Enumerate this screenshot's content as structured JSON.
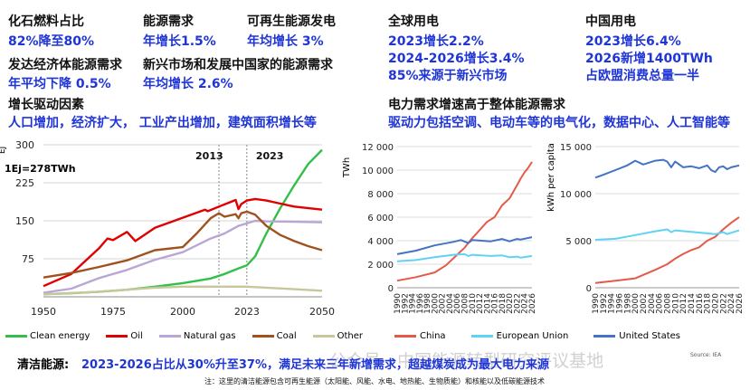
{
  "top": {
    "s1": {
      "label": "化石燃料占比",
      "value": "82%降至80%"
    },
    "s2": {
      "label": "能源需求",
      "value": "年增长1.5%"
    },
    "s3": {
      "label": "可再生能源发电",
      "value": "年均增长 3%"
    },
    "s4": {
      "label": "发达经济体能源需求",
      "value": "年平均下降 0.5%"
    },
    "s5": {
      "label": "新兴市场和发展中国家的能源需求",
      "value": "年均增长 2.6%"
    },
    "s6": {
      "label": "全球用电",
      "line1": "2023增长2.2%",
      "line2": "2024-2026增长3.4%",
      "line3": "85%来源于新兴市场"
    },
    "s7": {
      "label": "中国用电",
      "line1": "2023增长6.4%",
      "line2": "2026新增1400TWh",
      "line3": "占欧盟消费总量一半"
    }
  },
  "drivers": {
    "title": "增长驱动因素",
    "text": "人口增加，经济扩大， 工业产出增加，建筑面积增长等"
  },
  "elec": {
    "title": "电力需求增速高于整体能源需求",
    "text": "驱动力包括空调、电动车等的电气化，数据中心、人工智能等"
  },
  "footer": {
    "label": "清洁能源:",
    "text": "2023-2026占比从30%升至37%，满足未来三年新增需求，超越煤炭成为最大电力来源",
    "note": "注：这里的清洁能源包含可再生能源（太阳能、风能、水电、地热能、生物质能）和核能以及低碳能源技术"
  },
  "watermark": {
    "text": "公众号 · 中国能源转型研究评议基地"
  },
  "source_tag": "Source: IEA",
  "colors": {
    "clean": "#33c04a",
    "oil": "#e00000",
    "gas": "#b9a6d6",
    "coal": "#a0521e",
    "other": "#c8c79c",
    "china": "#e35a4a",
    "eu": "#5fd3f3",
    "us": "#4472c4",
    "blue": "#1f35d6"
  },
  "chart_data": [
    {
      "type": "line",
      "ylabel": "EJ",
      "annotation": "1Ej=278TWh",
      "markers": [
        "2013",
        "2023"
      ],
      "marker_x": [
        2013,
        2023
      ],
      "xlim": [
        1950,
        2050
      ],
      "ylim": [
        0,
        300
      ],
      "xticks": [
        1950,
        1975,
        2000,
        2023,
        2050
      ],
      "yticks": [
        75,
        150,
        225,
        300
      ],
      "series": [
        {
          "name": "Clean energy",
          "x": [
            1950,
            1960,
            1970,
            1980,
            1990,
            2000,
            2010,
            2015,
            2020,
            2023,
            2026,
            2030,
            2035,
            2040,
            2045,
            2050
          ],
          "y": [
            5,
            7,
            10,
            14,
            20,
            27,
            36,
            45,
            56,
            62,
            80,
            125,
            175,
            220,
            262,
            290
          ]
        },
        {
          "name": "Oil",
          "x": [
            1950,
            1960,
            1970,
            1973,
            1975,
            1980,
            1983,
            1990,
            2000,
            2008,
            2009,
            2013,
            2019,
            2020,
            2021,
            2023,
            2026,
            2030,
            2035,
            2040,
            2050
          ],
          "y": [
            21,
            45,
            96,
            115,
            112,
            128,
            110,
            136,
            156,
            172,
            169,
            178,
            191,
            173,
            183,
            190,
            193,
            190,
            184,
            178,
            172
          ]
        },
        {
          "name": "Natural gas",
          "x": [
            1950,
            1960,
            1970,
            1980,
            1990,
            2000,
            2010,
            2015,
            2020,
            2023,
            2026,
            2030,
            2040,
            2050
          ],
          "y": [
            8,
            16,
            37,
            53,
            73,
            88,
            115,
            125,
            140,
            145,
            150,
            149,
            148,
            147
          ]
        },
        {
          "name": "Coal",
          "x": [
            1950,
            1960,
            1970,
            1980,
            1990,
            2000,
            2005,
            2010,
            2013,
            2015,
            2019,
            2020,
            2021,
            2023,
            2026,
            2030,
            2035,
            2040,
            2045,
            2050
          ],
          "y": [
            38,
            47,
            59,
            72,
            92,
            98,
            125,
            155,
            165,
            158,
            163,
            155,
            165,
            168,
            162,
            140,
            122,
            110,
            100,
            92
          ]
        },
        {
          "name": "Other",
          "x": [
            1950,
            1970,
            1990,
            2000,
            2010,
            2020,
            2023,
            2030,
            2040,
            2050
          ],
          "y": [
            5,
            10,
            18,
            20,
            20,
            20,
            20,
            18,
            15,
            12
          ]
        }
      ]
    },
    {
      "type": "line",
      "ylabel": "TWh",
      "xlim": [
        1990,
        2026
      ],
      "ylim": [
        0,
        12000
      ],
      "yticks": [
        0,
        2000,
        4000,
        6000,
        8000,
        10000,
        12000
      ],
      "ytick_labels": [
        "0",
        "2 000",
        "4 000",
        "6 000",
        "8 000",
        "10 000",
        "12 000"
      ],
      "xticks": [
        1990,
        1992,
        1994,
        1996,
        1998,
        2000,
        2002,
        2004,
        2006,
        2008,
        2010,
        2012,
        2014,
        2016,
        2018,
        2020,
        2022,
        2024,
        2026
      ],
      "series": [
        {
          "name": "China",
          "x": [
            1990,
            1995,
            2000,
            2003,
            2005,
            2008,
            2010,
            2012,
            2014,
            2016,
            2018,
            2020,
            2022,
            2023,
            2024,
            2025,
            2026
          ],
          "y": [
            600,
            900,
            1300,
            1900,
            2500,
            3400,
            4200,
            4900,
            5600,
            6000,
            7000,
            7600,
            8700,
            9300,
            9800,
            10200,
            10700
          ]
        },
        {
          "name": "European Union",
          "x": [
            1990,
            1995,
            2000,
            2005,
            2008,
            2009,
            2010,
            2015,
            2018,
            2020,
            2022,
            2023,
            2026
          ],
          "y": [
            2250,
            2350,
            2600,
            2800,
            2850,
            2700,
            2800,
            2700,
            2750,
            2600,
            2650,
            2550,
            2700
          ]
        },
        {
          "name": "United States",
          "x": [
            1990,
            1995,
            2000,
            2005,
            2007,
            2009,
            2010,
            2015,
            2018,
            2020,
            2022,
            2023,
            2026
          ],
          "y": [
            2850,
            3150,
            3600,
            3900,
            4050,
            3800,
            4050,
            3950,
            4150,
            3950,
            4150,
            4100,
            4300
          ]
        }
      ]
    },
    {
      "type": "line",
      "ylabel": "kWh per capita",
      "xlim": [
        1990,
        2026
      ],
      "ylim": [
        0,
        15000
      ],
      "yticks": [
        0,
        5000,
        10000,
        15000
      ],
      "ytick_labels": [
        "0",
        "5 000",
        "10 000",
        "15 000"
      ],
      "xticks": [
        1990,
        1992,
        1994,
        1996,
        1998,
        2000,
        2002,
        2004,
        2006,
        2008,
        2010,
        2012,
        2014,
        2016,
        2018,
        2020,
        2022,
        2024,
        2026
      ],
      "series": [
        {
          "name": "China",
          "x": [
            1990,
            1995,
            2000,
            2005,
            2008,
            2010,
            2012,
            2014,
            2016,
            2018,
            2020,
            2022,
            2024,
            2026
          ],
          "y": [
            500,
            750,
            1000,
            1900,
            2500,
            3100,
            3600,
            4000,
            4300,
            5000,
            5400,
            6200,
            6900,
            7500
          ]
        },
        {
          "name": "European Union",
          "x": [
            1990,
            1995,
            2000,
            2005,
            2008,
            2009,
            2010,
            2015,
            2020,
            2022,
            2023,
            2026
          ],
          "y": [
            5100,
            5200,
            5600,
            6000,
            6200,
            5900,
            6100,
            5900,
            5700,
            5900,
            5700,
            6100
          ]
        },
        {
          "name": "United States",
          "x": [
            1990,
            1992,
            1995,
            1998,
            2000,
            2002,
            2005,
            2007,
            2008,
            2009,
            2010,
            2012,
            2014,
            2016,
            2018,
            2019,
            2020,
            2021,
            2022,
            2023,
            2024,
            2026
          ],
          "y": [
            11700,
            12000,
            12500,
            13000,
            13500,
            13100,
            13500,
            13600,
            13400,
            12800,
            13400,
            12800,
            12900,
            12700,
            13000,
            12500,
            12300,
            12800,
            12900,
            12600,
            12800,
            13000
          ]
        }
      ]
    }
  ]
}
